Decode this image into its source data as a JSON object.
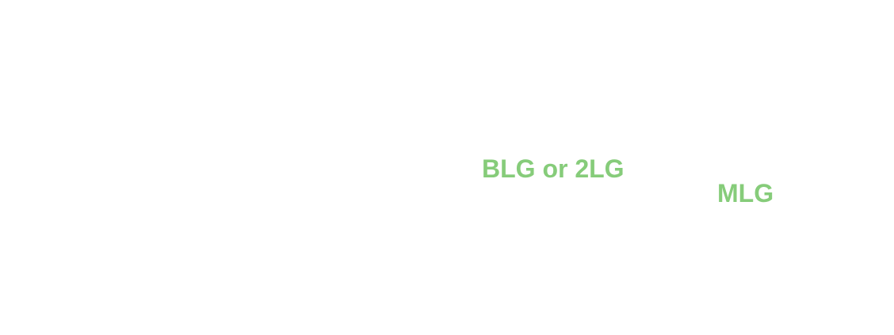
{
  "labels": {
    "blg_2lg": "BLG or 2LG",
    "mlg": "MLG"
  },
  "colors": {
    "background": "#ffffff",
    "label_green": "#86cc7a"
  }
}
